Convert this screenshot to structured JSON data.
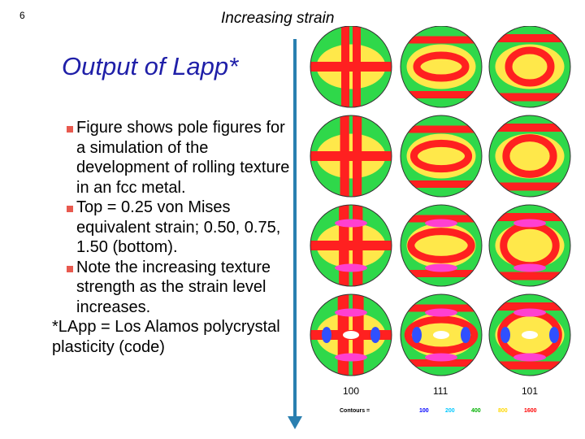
{
  "slide_number": "6",
  "top_label": "Increasing strain",
  "title": "Output of Lapp*",
  "bullets": [
    "Figure shows pole figures for a simulation of the development of rolling texture in an fcc metal.",
    "Top = 0.25 von Mises equivalent strain; 0.50, 0.75, 1.50 (bottom).",
    "Note the increasing texture strength as the strain level increases."
  ],
  "footnote": "*LApp = Los Alamos polycrystal plasticity (code)",
  "figure": {
    "column_labels": [
      "100",
      "111",
      "101"
    ],
    "contours_label": "Contours =",
    "contour_values": [
      "100",
      "200",
      "400",
      "800",
      "1600"
    ],
    "contour_colors": [
      "#0000ff",
      "#00c8ff",
      "#00b000",
      "#ffd800",
      "#ff0000"
    ]
  },
  "colors": {
    "title": "#1f1fa8",
    "arrow": "#2a7fb0",
    "bullet": "#e85a4f"
  }
}
